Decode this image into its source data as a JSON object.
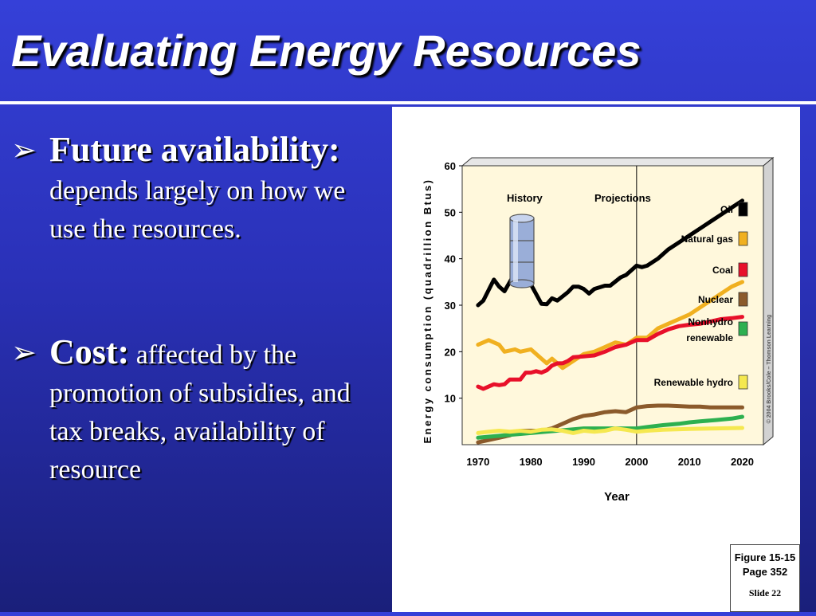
{
  "slide": {
    "title": "Evaluating Energy Resources",
    "bullets": [
      {
        "head": "Future availability:",
        "body": "depends largely on how we use the resources."
      },
      {
        "head": "Cost:",
        "body": "affected by the promotion of subsidies, and tax breaks, availability of resource"
      }
    ],
    "figure_box": {
      "figure": "Figure 15-15",
      "page": "Page 352",
      "slide": "Slide 22"
    }
  },
  "chart_data": {
    "type": "line",
    "xlabel": "Year",
    "ylabel": "Energy consumption (quadrillion Btus)",
    "xlim": [
      1967,
      2024
    ],
    "ylim": [
      0,
      60
    ],
    "x_ticks": [
      1970,
      1980,
      1990,
      2000,
      2010,
      2020
    ],
    "y_ticks": [
      10,
      20,
      30,
      40,
      50,
      60
    ],
    "annotations": {
      "history": "History",
      "projections": "Projections",
      "divider_year": 2000
    },
    "copyright": "© 2004 Brooks/Cole – Thomson Learning",
    "background": "#fff8dc",
    "series": [
      {
        "name": "Oil",
        "color": "#000000",
        "points": [
          [
            1970,
            30
          ],
          [
            1971,
            31
          ],
          [
            1973,
            35.5
          ],
          [
            1974,
            34
          ],
          [
            1975,
            33
          ],
          [
            1977,
            37
          ],
          [
            1978,
            38.2
          ],
          [
            1979,
            37.5
          ],
          [
            1980,
            34.5
          ],
          [
            1982,
            30.3
          ],
          [
            1983,
            30.2
          ],
          [
            1984,
            31.5
          ],
          [
            1985,
            31
          ],
          [
            1987,
            32.8
          ],
          [
            1988,
            34
          ],
          [
            1989,
            34
          ],
          [
            1990,
            33.5
          ],
          [
            1991,
            32.5
          ],
          [
            1992,
            33.5
          ],
          [
            1994,
            34.2
          ],
          [
            1995,
            34.2
          ],
          [
            1997,
            36
          ],
          [
            1998,
            36.5
          ],
          [
            1999,
            37.5
          ],
          [
            2000,
            38.5
          ],
          [
            2001,
            38.2
          ],
          [
            2002,
            38.5
          ],
          [
            2004,
            40
          ],
          [
            2006,
            42
          ],
          [
            2008,
            43.5
          ],
          [
            2010,
            45
          ],
          [
            2012,
            46.5
          ],
          [
            2014,
            48
          ],
          [
            2016,
            49.5
          ],
          [
            2018,
            51
          ],
          [
            2020,
            52.5
          ]
        ]
      },
      {
        "name": "Natural gas",
        "color": "#f0b020",
        "points": [
          [
            1970,
            21.5
          ],
          [
            1972,
            22.5
          ],
          [
            1974,
            21.5
          ],
          [
            1975,
            20
          ],
          [
            1977,
            20.5
          ],
          [
            1978,
            20
          ],
          [
            1980,
            20.5
          ],
          [
            1982,
            18.5
          ],
          [
            1983,
            17.5
          ],
          [
            1984,
            18.5
          ],
          [
            1985,
            17.5
          ],
          [
            1986,
            16.5
          ],
          [
            1988,
            18
          ],
          [
            1990,
            19.5
          ],
          [
            1992,
            20
          ],
          [
            1994,
            21
          ],
          [
            1996,
            22
          ],
          [
            1998,
            21.5
          ],
          [
            2000,
            23
          ],
          [
            2002,
            23
          ],
          [
            2004,
            25
          ],
          [
            2006,
            26
          ],
          [
            2008,
            27
          ],
          [
            2010,
            28
          ],
          [
            2012,
            29.5
          ],
          [
            2014,
            31
          ],
          [
            2016,
            32.5
          ],
          [
            2018,
            34
          ],
          [
            2020,
            35
          ]
        ]
      },
      {
        "name": "Coal",
        "color": "#e8102a",
        "points": [
          [
            1970,
            12.5
          ],
          [
            1971,
            12
          ],
          [
            1972,
            12.5
          ],
          [
            1973,
            13
          ],
          [
            1974,
            12.8
          ],
          [
            1975,
            13
          ],
          [
            1976,
            14
          ],
          [
            1977,
            14
          ],
          [
            1978,
            14
          ],
          [
            1979,
            15.5
          ],
          [
            1980,
            15.5
          ],
          [
            1981,
            15.8
          ],
          [
            1982,
            15.5
          ],
          [
            1983,
            16
          ],
          [
            1984,
            17
          ],
          [
            1985,
            17.5
          ],
          [
            1986,
            17.5
          ],
          [
            1987,
            18
          ],
          [
            1988,
            18.8
          ],
          [
            1990,
            19
          ],
          [
            1992,
            19.2
          ],
          [
            1994,
            20
          ],
          [
            1996,
            21
          ],
          [
            1998,
            21.5
          ],
          [
            2000,
            22.5
          ],
          [
            2002,
            22.5
          ],
          [
            2004,
            23.8
          ],
          [
            2006,
            24.8
          ],
          [
            2008,
            25.5
          ],
          [
            2010,
            25.8
          ],
          [
            2012,
            26
          ],
          [
            2014,
            26.5
          ],
          [
            2016,
            27
          ],
          [
            2018,
            27.2
          ],
          [
            2020,
            27.5
          ]
        ]
      },
      {
        "name": "Nuclear",
        "color": "#8b5a2b",
        "points": [
          [
            1970,
            0.5
          ],
          [
            1972,
            1
          ],
          [
            1974,
            1.5
          ],
          [
            1976,
            2
          ],
          [
            1978,
            3
          ],
          [
            1980,
            3
          ],
          [
            1982,
            3
          ],
          [
            1984,
            3.5
          ],
          [
            1986,
            4.5
          ],
          [
            1988,
            5.5
          ],
          [
            1990,
            6.2
          ],
          [
            1992,
            6.5
          ],
          [
            1994,
            7
          ],
          [
            1996,
            7.2
          ],
          [
            1998,
            7
          ],
          [
            2000,
            8
          ],
          [
            2002,
            8.3
          ],
          [
            2004,
            8.4
          ],
          [
            2006,
            8.4
          ],
          [
            2008,
            8.3
          ],
          [
            2010,
            8.2
          ],
          [
            2012,
            8.2
          ],
          [
            2014,
            8
          ],
          [
            2016,
            8
          ],
          [
            2018,
            8
          ],
          [
            2020,
            8
          ]
        ]
      },
      {
        "name": "Nonhydro renewable",
        "color": "#2db050",
        "points": [
          [
            1970,
            1.5
          ],
          [
            1975,
            2
          ],
          [
            1980,
            2.5
          ],
          [
            1985,
            3
          ],
          [
            1990,
            3.5
          ],
          [
            1995,
            3.5
          ],
          [
            2000,
            3.5
          ],
          [
            2002,
            3.8
          ],
          [
            2005,
            4.2
          ],
          [
            2008,
            4.5
          ],
          [
            2010,
            4.8
          ],
          [
            2012,
            5
          ],
          [
            2015,
            5.3
          ],
          [
            2018,
            5.6
          ],
          [
            2020,
            6
          ]
        ]
      },
      {
        "name": "Renewable hydro",
        "color": "#f5e850",
        "points": [
          [
            1970,
            2.5
          ],
          [
            1972,
            2.8
          ],
          [
            1974,
            3
          ],
          [
            1976,
            2.8
          ],
          [
            1978,
            3
          ],
          [
            1980,
            2.8
          ],
          [
            1982,
            3.2
          ],
          [
            1984,
            3.3
          ],
          [
            1986,
            3
          ],
          [
            1988,
            2.5
          ],
          [
            1990,
            3
          ],
          [
            1992,
            2.8
          ],
          [
            1994,
            3
          ],
          [
            1996,
            3.5
          ],
          [
            1998,
            3.2
          ],
          [
            2000,
            2.8
          ],
          [
            2002,
            3
          ],
          [
            2005,
            3.2
          ],
          [
            2010,
            3.4
          ],
          [
            2015,
            3.5
          ],
          [
            2020,
            3.6
          ]
        ]
      }
    ]
  }
}
